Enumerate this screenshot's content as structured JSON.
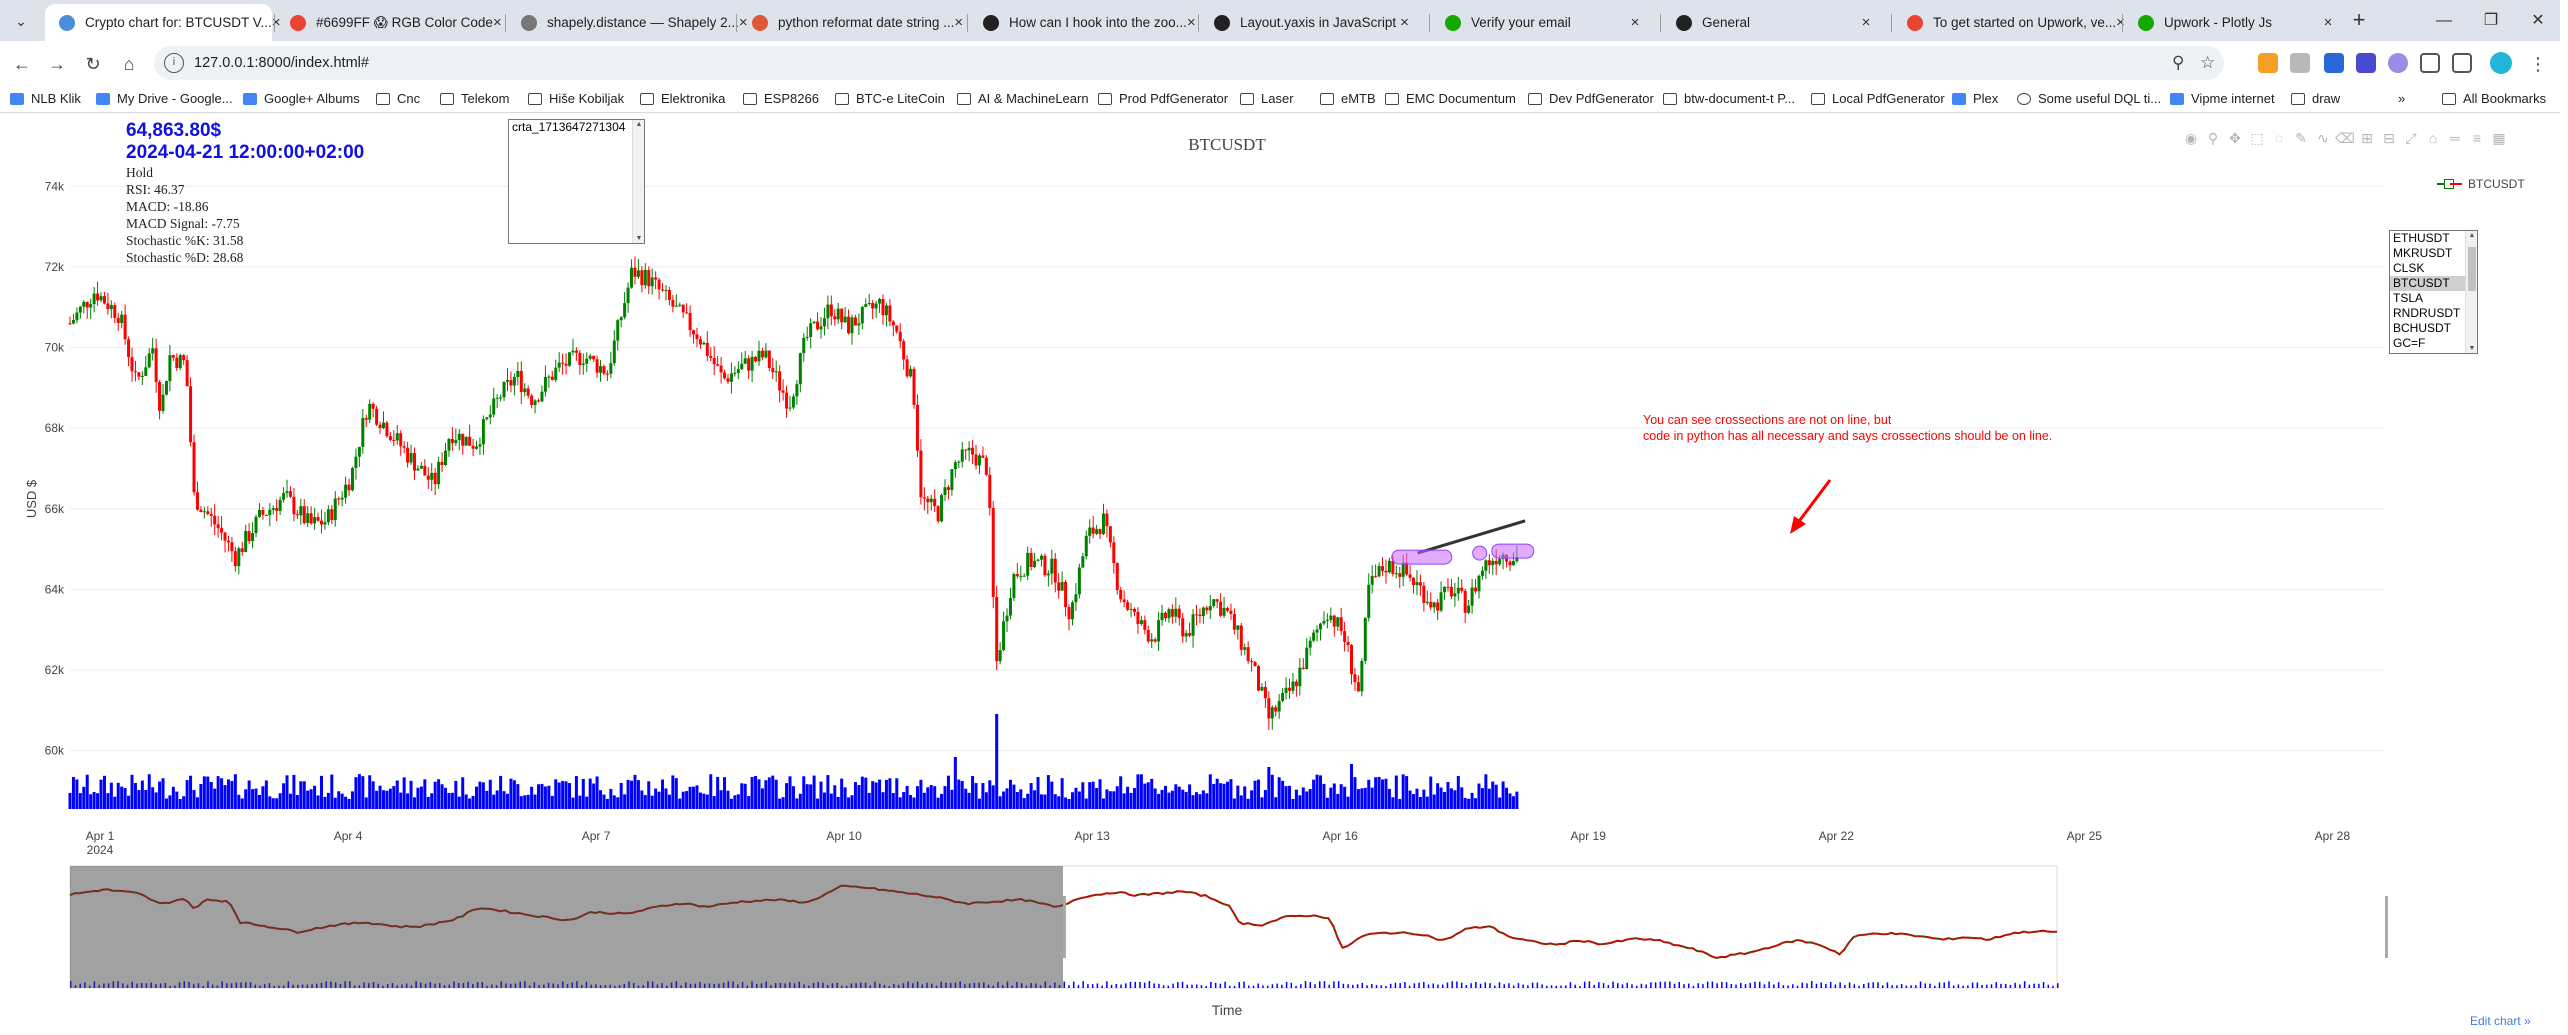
{
  "browser": {
    "tabs": [
      {
        "label": "Crypto chart for: BTCUSDT V...",
        "color": "#4a90d9",
        "active": true
      },
      {
        "label": "#6699FF 😱 RGB Color Code",
        "color": "#ea4335"
      },
      {
        "label": "shapely.distance — Shapely 2...",
        "color": "#777777"
      },
      {
        "label": "python reformat date string ...",
        "color": "#de5833"
      },
      {
        "label": "How can I hook into the zoo...",
        "color": "#222222"
      },
      {
        "label": "Layout.yaxis in JavaScript",
        "color": "#222222"
      },
      {
        "label": "Verify your email",
        "color": "#14a800"
      },
      {
        "label": "General",
        "color": "#222222"
      },
      {
        "label": "To get started on Upwork, ve...",
        "color": "#ea4335"
      },
      {
        "label": "Upwork - Plotly Js",
        "color": "#14a800"
      }
    ],
    "url": "127.0.0.1:8000/index.html#",
    "bookmarks": [
      "NLB Klik",
      "My Drive - Google...",
      "Google+ Albums",
      "Cnc",
      "Telekom",
      "Hiše Kobiljak",
      "Elektronika",
      "ESP8266",
      "BTC-e LiteCoin",
      "AI & MachineLearn",
      "Prod PdfGenerator",
      "Laser",
      "eMTB",
      "EMC Documentum",
      "Dev PdfGenerator",
      "btw-document-t P...",
      "Local PdfGenerator",
      "Plex",
      "Some useful DQL ti...",
      "Vipme internet",
      "draw"
    ],
    "all_bookmarks": "All Bookmarks"
  },
  "info": {
    "price": "64,863.80$",
    "datetime": "2024-04-21 12:00:00+02:00",
    "signal": "Hold",
    "rsi": "RSI: 46.37",
    "macd": "MACD: -18.86",
    "macd_signal": "MACD Signal: -7.75",
    "stoch_k": "Stochastic %K: 31.58",
    "stoch_d": "Stochastic %D: 28.68"
  },
  "lines_list": {
    "items": [
      "crta_1713647271304"
    ]
  },
  "symbols": {
    "items": [
      "ETHUSDT",
      "MKRUSDT",
      "CLSK",
      "BTCUSDT",
      "TSLA",
      "RNDRUSDT",
      "BCHUSDT",
      "GC=F"
    ],
    "selected": "BTCUSDT"
  },
  "annotation": {
    "line1": "You can see crossections are not on line, but",
    "line2": "code in python has all necessary and says crossections should be on line.",
    "color": "#ff0000"
  },
  "edit_chart": "Edit chart »",
  "chart_data": {
    "type": "candlestick",
    "title": "BTCUSDT",
    "xlabel": "Time",
    "ylabel": "USD $",
    "legend": [
      "BTCUSDT"
    ],
    "legend_position": "top-right",
    "x_ticks": [
      "Apr 1\n2024",
      "Apr 4",
      "Apr 7",
      "Apr 10",
      "Apr 13",
      "Apr 16",
      "Apr 19",
      "Apr 22",
      "Apr 25",
      "Apr 28"
    ],
    "x_range": [
      "2024-04-01",
      "2024-04-29"
    ],
    "y_ticks": [
      "60k",
      "62k",
      "64k",
      "66k",
      "68k",
      "70k",
      "72k",
      "74k"
    ],
    "y_range": [
      58800,
      74800
    ],
    "series_close": [
      [
        0,
        70600
      ],
      [
        0.3,
        71400
      ],
      [
        0.6,
        70800
      ],
      [
        0.8,
        69100
      ],
      [
        1.0,
        70000
      ],
      [
        1.1,
        68400
      ],
      [
        1.2,
        69800
      ],
      [
        1.4,
        69600
      ],
      [
        1.5,
        66300
      ],
      [
        1.8,
        65500
      ],
      [
        2.0,
        64800
      ],
      [
        2.3,
        65800
      ],
      [
        2.6,
        66300
      ],
      [
        2.9,
        65600
      ],
      [
        3.1,
        65700
      ],
      [
        3.4,
        66800
      ],
      [
        3.6,
        68600
      ],
      [
        3.8,
        68100
      ],
      [
        4.1,
        67300
      ],
      [
        4.4,
        66600
      ],
      [
        4.6,
        67900
      ],
      [
        4.9,
        67600
      ],
      [
        5.2,
        68800
      ],
      [
        5.4,
        69300
      ],
      [
        5.6,
        68700
      ],
      [
        5.9,
        69500
      ],
      [
        6.2,
        69800
      ],
      [
        6.5,
        69400
      ],
      [
        6.8,
        71900
      ],
      [
        7.0,
        71700
      ],
      [
        7.3,
        71000
      ],
      [
        7.6,
        70300
      ],
      [
        7.9,
        69200
      ],
      [
        8.1,
        69500
      ],
      [
        8.4,
        69800
      ],
      [
        8.7,
        68600
      ],
      [
        8.9,
        70200
      ],
      [
        9.2,
        71000
      ],
      [
        9.4,
        70500
      ],
      [
        9.8,
        71100
      ],
      [
        10.0,
        70400
      ],
      [
        10.2,
        69000
      ],
      [
        10.3,
        66200
      ],
      [
        10.5,
        65900
      ],
      [
        10.7,
        67100
      ],
      [
        10.9,
        67400
      ],
      [
        11.1,
        67000
      ],
      [
        11.2,
        62100
      ],
      [
        11.4,
        64300
      ],
      [
        11.6,
        64700
      ],
      [
        11.9,
        64500
      ],
      [
        12.1,
        63400
      ],
      [
        12.3,
        65300
      ],
      [
        12.5,
        65700
      ],
      [
        12.7,
        63900
      ],
      [
        12.9,
        63200
      ],
      [
        13.1,
        62800
      ],
      [
        13.3,
        63500
      ],
      [
        13.5,
        62900
      ],
      [
        13.8,
        63800
      ],
      [
        14.0,
        63400
      ],
      [
        14.3,
        62100
      ],
      [
        14.5,
        60800
      ],
      [
        14.8,
        61600
      ],
      [
        15.0,
        62600
      ],
      [
        15.2,
        63500
      ],
      [
        15.4,
        62900
      ],
      [
        15.6,
        61300
      ],
      [
        15.7,
        64000
      ],
      [
        15.9,
        64600
      ],
      [
        16.1,
        64500
      ],
      [
        16.3,
        64100
      ],
      [
        16.5,
        63600
      ],
      [
        16.7,
        64000
      ],
      [
        16.9,
        63600
      ],
      [
        17.1,
        64600
      ],
      [
        17.3,
        64900
      ],
      [
        17.5,
        64800
      ]
    ],
    "crossing_line": {
      "x": [
        16.3,
        17.6
      ],
      "y": [
        64900,
        65700
      ]
    },
    "volume_spikes": [
      {
        "x": 11.2,
        "volume_rel": 0.95
      },
      {
        "x": 10.7,
        "volume_rel": 0.52
      },
      {
        "x": 14.5,
        "volume_rel": 0.42
      },
      {
        "x": 15.5,
        "volume_rel": 0.45
      }
    ],
    "range_slider_selection": "2024-04-01 to 2024-04-11",
    "colors": {
      "up": "#008000",
      "down": "#ff0000",
      "volume": "#0000ff",
      "line": "#333333",
      "marker": "#cc66ff"
    }
  }
}
